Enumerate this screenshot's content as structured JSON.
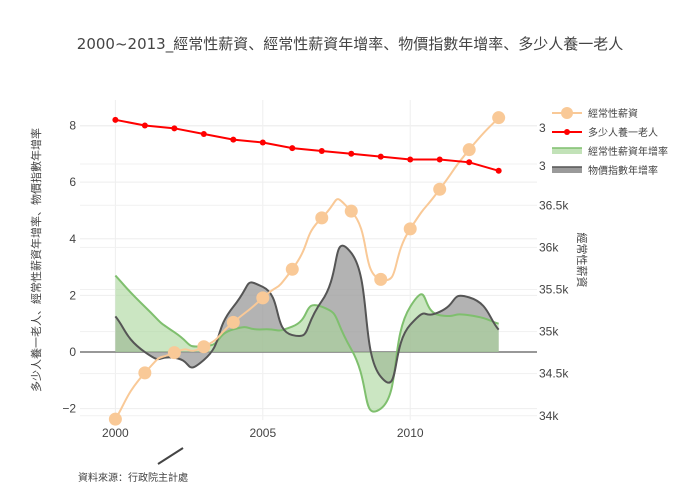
{
  "chart_data": {
    "type": "line",
    "title": "2000~2013_經常性薪資、經常性薪資年增率、物價指數年增率、多少人養一老人",
    "x": [
      2000,
      2001,
      2002,
      2003,
      2004,
      2005,
      2006,
      2007,
      2008,
      2009,
      2010,
      2011,
      2012,
      2013
    ],
    "xlabel": "",
    "x_ticks": [
      "2000",
      "2005",
      "2010"
    ],
    "x_tick_values": [
      2000,
      2005,
      2010
    ],
    "xlim": [
      1998.8,
      2014.3
    ],
    "ylabel": "多少人養一老人、經常性薪資年增率、物價指數年增率",
    "ylim": [
      -2.4,
      8.9
    ],
    "y_ticks": [
      "−2",
      "0",
      "2",
      "4",
      "6",
      "8"
    ],
    "y_tick_values": [
      -2,
      0,
      2,
      4,
      6,
      8
    ],
    "y2label": "經常性薪資",
    "y2lim": [
      33950,
      37750
    ],
    "y2_ticks": [
      "34k",
      "34.5k",
      "35k",
      "35.5k",
      "36k",
      "36.5k"
    ],
    "y2_tick_values": [
      34000,
      34500,
      35000,
      35500,
      36000,
      36500
    ],
    "y2_extra_ticks": [
      "3",
      "3"
    ],
    "grid": true,
    "legend_position": "top-right",
    "series": [
      {
        "name": "經常性薪資",
        "type": "line-markers-spline",
        "axis": "y2",
        "color": "#f9c997",
        "values": [
          33960,
          34510,
          34750,
          34820,
          35110,
          35400,
          35740,
          36350,
          36430,
          35620,
          36220,
          36690,
          37160,
          37540
        ]
      },
      {
        "name": "多少人養一老人",
        "type": "line-markers",
        "axis": "y",
        "color": "#ff0000",
        "values": [
          8.2,
          8.0,
          7.9,
          7.7,
          7.5,
          7.4,
          7.2,
          7.1,
          7.0,
          6.9,
          6.8,
          6.8,
          6.7,
          6.4
        ]
      },
      {
        "name": "經常性薪資年增率",
        "type": "area-spline",
        "axis": "y",
        "color": "#7fbf6e",
        "fill": "#a8d59a",
        "values": [
          2.7,
          1.6,
          0.7,
          0.2,
          0.8,
          0.8,
          0.9,
          1.6,
          0.1,
          -2.0,
          1.6,
          1.3,
          1.3,
          1.0
        ]
      },
      {
        "name": "物價指數年增率",
        "type": "area-spline",
        "axis": "y",
        "color": "#555555",
        "fill": "#9a9a9a",
        "values": [
          1.26,
          0.0,
          -0.2,
          -0.28,
          1.6,
          2.3,
          0.6,
          1.8,
          3.5,
          -0.87,
          0.96,
          1.42,
          1.93,
          0.79
        ]
      }
    ],
    "annotation": "資料來源：行政院主計處"
  }
}
